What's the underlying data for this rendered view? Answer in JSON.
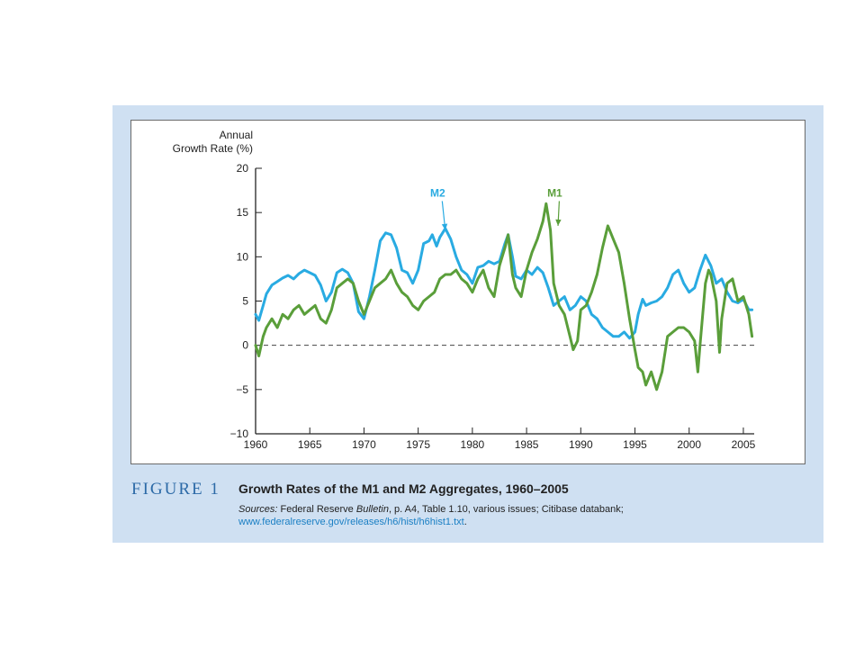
{
  "figure": {
    "number": "FIGURE 1",
    "title": "Growth Rates of the M1 and M2 Aggregates, 1960–2005",
    "sources_label": "Sources:",
    "sources_text_1": " Federal Reserve ",
    "sources_italic": "Bulletin",
    "sources_text_2": ", p. A4, Table 1.10, various issues; Citibase databank;",
    "sources_link": "www.federalreserve.gov/releases/h6/hist/h6hist1.txt",
    "sources_end": "."
  },
  "colors": {
    "panel_background": "#cfe0f2",
    "m1": "#5a9e3a",
    "m2": "#29abe2",
    "figure_number": "#2c6aa7"
  },
  "chart_data": {
    "type": "line",
    "title": "",
    "ylabel_line1": "Annual",
    "ylabel_line2": "Growth Rate (%)",
    "xlabel": "",
    "xlim": [
      1960,
      2006
    ],
    "ylim": [
      -10,
      20
    ],
    "xticks": [
      1960,
      1965,
      1970,
      1975,
      1980,
      1985,
      1990,
      1995,
      2000,
      2005
    ],
    "yticks": [
      20,
      15,
      10,
      5,
      0,
      -5,
      -10
    ],
    "ytick_labels": [
      "20",
      "15",
      "10",
      "5",
      "0",
      "−5",
      "−10"
    ],
    "reference_line": {
      "y": 0,
      "style": "dashed"
    },
    "grid": false,
    "series": [
      {
        "name": "M2",
        "annotation": "M2",
        "annotation_at": {
          "x": 1976.8,
          "y": 16.8
        },
        "arrow_to": {
          "x": 1977.5,
          "y": 13.0
        },
        "points": [
          [
            1960.0,
            3.5
          ],
          [
            1960.3,
            2.8
          ],
          [
            1960.7,
            4.5
          ],
          [
            1961.0,
            5.8
          ],
          [
            1961.5,
            6.8
          ],
          [
            1962.0,
            7.2
          ],
          [
            1962.5,
            7.6
          ],
          [
            1963.0,
            7.9
          ],
          [
            1963.5,
            7.5
          ],
          [
            1964.0,
            8.1
          ],
          [
            1964.5,
            8.5
          ],
          [
            1965.0,
            8.2
          ],
          [
            1965.5,
            7.9
          ],
          [
            1966.0,
            6.8
          ],
          [
            1966.5,
            5.0
          ],
          [
            1967.0,
            6.0
          ],
          [
            1967.5,
            8.2
          ],
          [
            1968.0,
            8.6
          ],
          [
            1968.5,
            8.2
          ],
          [
            1969.0,
            7.0
          ],
          [
            1969.5,
            3.8
          ],
          [
            1970.0,
            3.0
          ],
          [
            1970.5,
            5.5
          ],
          [
            1971.0,
            8.5
          ],
          [
            1971.5,
            11.8
          ],
          [
            1972.0,
            12.7
          ],
          [
            1972.5,
            12.5
          ],
          [
            1973.0,
            11.0
          ],
          [
            1973.5,
            8.5
          ],
          [
            1974.0,
            8.2
          ],
          [
            1974.5,
            7.0
          ],
          [
            1975.0,
            8.5
          ],
          [
            1975.5,
            11.5
          ],
          [
            1976.0,
            11.8
          ],
          [
            1976.3,
            12.5
          ],
          [
            1976.7,
            11.2
          ],
          [
            1977.0,
            12.2
          ],
          [
            1977.5,
            13.2
          ],
          [
            1978.0,
            12.0
          ],
          [
            1978.5,
            10.0
          ],
          [
            1979.0,
            8.5
          ],
          [
            1979.5,
            8.0
          ],
          [
            1980.0,
            7.0
          ],
          [
            1980.5,
            8.8
          ],
          [
            1981.0,
            9.0
          ],
          [
            1981.5,
            9.5
          ],
          [
            1982.0,
            9.2
          ],
          [
            1982.5,
            9.5
          ],
          [
            1983.0,
            11.5
          ],
          [
            1983.3,
            12.5
          ],
          [
            1983.7,
            10.0
          ],
          [
            1984.0,
            7.8
          ],
          [
            1984.5,
            7.5
          ],
          [
            1985.0,
            8.5
          ],
          [
            1985.5,
            8.0
          ],
          [
            1986.0,
            8.8
          ],
          [
            1986.5,
            8.2
          ],
          [
            1987.0,
            6.5
          ],
          [
            1987.5,
            4.5
          ],
          [
            1988.0,
            5.0
          ],
          [
            1988.5,
            5.5
          ],
          [
            1989.0,
            4.0
          ],
          [
            1989.5,
            4.5
          ],
          [
            1990.0,
            5.5
          ],
          [
            1990.5,
            5.0
          ],
          [
            1991.0,
            3.5
          ],
          [
            1991.5,
            3.0
          ],
          [
            1992.0,
            2.0
          ],
          [
            1992.5,
            1.5
          ],
          [
            1993.0,
            1.0
          ],
          [
            1993.5,
            1.0
          ],
          [
            1994.0,
            1.5
          ],
          [
            1994.5,
            0.8
          ],
          [
            1995.0,
            1.5
          ],
          [
            1995.3,
            3.5
          ],
          [
            1995.7,
            5.2
          ],
          [
            1996.0,
            4.5
          ],
          [
            1996.5,
            4.8
          ],
          [
            1997.0,
            5.0
          ],
          [
            1997.5,
            5.5
          ],
          [
            1998.0,
            6.5
          ],
          [
            1998.5,
            8.0
          ],
          [
            1999.0,
            8.5
          ],
          [
            1999.5,
            7.0
          ],
          [
            2000.0,
            6.0
          ],
          [
            2000.5,
            6.5
          ],
          [
            2001.0,
            8.5
          ],
          [
            2001.5,
            10.2
          ],
          [
            2002.0,
            9.0
          ],
          [
            2002.5,
            7.0
          ],
          [
            2003.0,
            7.5
          ],
          [
            2003.5,
            6.0
          ],
          [
            2004.0,
            5.0
          ],
          [
            2004.5,
            4.8
          ],
          [
            2005.0,
            5.2
          ],
          [
            2005.5,
            4.0
          ],
          [
            2005.8,
            4.0
          ]
        ]
      },
      {
        "name": "M1",
        "annotation": "M1",
        "annotation_at": {
          "x": 1987.6,
          "y": 16.8
        },
        "arrow_to": {
          "x": 1987.9,
          "y": 13.5
        },
        "points": [
          [
            1960.0,
            0.0
          ],
          [
            1960.3,
            -1.2
          ],
          [
            1960.7,
            1.0
          ],
          [
            1961.0,
            2.0
          ],
          [
            1961.5,
            3.0
          ],
          [
            1962.0,
            2.0
          ],
          [
            1962.5,
            3.5
          ],
          [
            1963.0,
            3.0
          ],
          [
            1963.5,
            4.0
          ],
          [
            1964.0,
            4.5
          ],
          [
            1964.5,
            3.5
          ],
          [
            1965.0,
            4.0
          ],
          [
            1965.5,
            4.5
          ],
          [
            1966.0,
            3.0
          ],
          [
            1966.5,
            2.5
          ],
          [
            1967.0,
            4.0
          ],
          [
            1967.5,
            6.5
          ],
          [
            1968.0,
            7.0
          ],
          [
            1968.5,
            7.5
          ],
          [
            1969.0,
            7.0
          ],
          [
            1969.5,
            5.0
          ],
          [
            1970.0,
            3.5
          ],
          [
            1970.5,
            5.0
          ],
          [
            1971.0,
            6.5
          ],
          [
            1971.5,
            7.0
          ],
          [
            1972.0,
            7.5
          ],
          [
            1972.5,
            8.5
          ],
          [
            1973.0,
            7.0
          ],
          [
            1973.5,
            6.0
          ],
          [
            1974.0,
            5.5
          ],
          [
            1974.5,
            4.5
          ],
          [
            1975.0,
            4.0
          ],
          [
            1975.5,
            5.0
          ],
          [
            1976.0,
            5.5
          ],
          [
            1976.5,
            6.0
          ],
          [
            1977.0,
            7.5
          ],
          [
            1977.5,
            8.0
          ],
          [
            1978.0,
            8.0
          ],
          [
            1978.5,
            8.5
          ],
          [
            1979.0,
            7.5
          ],
          [
            1979.5,
            7.0
          ],
          [
            1980.0,
            6.0
          ],
          [
            1980.5,
            7.5
          ],
          [
            1981.0,
            8.5
          ],
          [
            1981.5,
            6.5
          ],
          [
            1982.0,
            5.5
          ],
          [
            1982.5,
            9.0
          ],
          [
            1983.0,
            11.0
          ],
          [
            1983.3,
            12.5
          ],
          [
            1983.7,
            8.0
          ],
          [
            1984.0,
            6.5
          ],
          [
            1984.5,
            5.5
          ],
          [
            1985.0,
            8.5
          ],
          [
            1985.5,
            10.5
          ],
          [
            1986.0,
            12.0
          ],
          [
            1986.5,
            14.0
          ],
          [
            1986.8,
            16.0
          ],
          [
            1987.2,
            13.0
          ],
          [
            1987.5,
            7.0
          ],
          [
            1988.0,
            4.5
          ],
          [
            1988.5,
            3.5
          ],
          [
            1989.0,
            1.0
          ],
          [
            1989.3,
            -0.5
          ],
          [
            1989.7,
            0.5
          ],
          [
            1990.0,
            4.0
          ],
          [
            1990.5,
            4.5
          ],
          [
            1991.0,
            6.0
          ],
          [
            1991.5,
            8.0
          ],
          [
            1992.0,
            11.0
          ],
          [
            1992.5,
            13.5
          ],
          [
            1993.0,
            12.0
          ],
          [
            1993.5,
            10.5
          ],
          [
            1994.0,
            7.0
          ],
          [
            1994.5,
            3.0
          ],
          [
            1995.0,
            -0.5
          ],
          [
            1995.3,
            -2.5
          ],
          [
            1995.7,
            -3.0
          ],
          [
            1996.0,
            -4.5
          ],
          [
            1996.5,
            -3.0
          ],
          [
            1997.0,
            -5.0
          ],
          [
            1997.5,
            -3.0
          ],
          [
            1998.0,
            1.0
          ],
          [
            1998.5,
            1.5
          ],
          [
            1999.0,
            2.0
          ],
          [
            1999.5,
            2.0
          ],
          [
            2000.0,
            1.5
          ],
          [
            2000.5,
            0.5
          ],
          [
            2000.8,
            -3.0
          ],
          [
            2001.0,
            0.0
          ],
          [
            2001.5,
            7.0
          ],
          [
            2001.8,
            8.5
          ],
          [
            2002.0,
            8.0
          ],
          [
            2002.5,
            5.0
          ],
          [
            2002.8,
            -0.8
          ],
          [
            2003.0,
            3.0
          ],
          [
            2003.5,
            7.0
          ],
          [
            2004.0,
            7.5
          ],
          [
            2004.5,
            5.0
          ],
          [
            2005.0,
            5.5
          ],
          [
            2005.5,
            3.5
          ],
          [
            2005.8,
            1.0
          ]
        ]
      }
    ]
  }
}
